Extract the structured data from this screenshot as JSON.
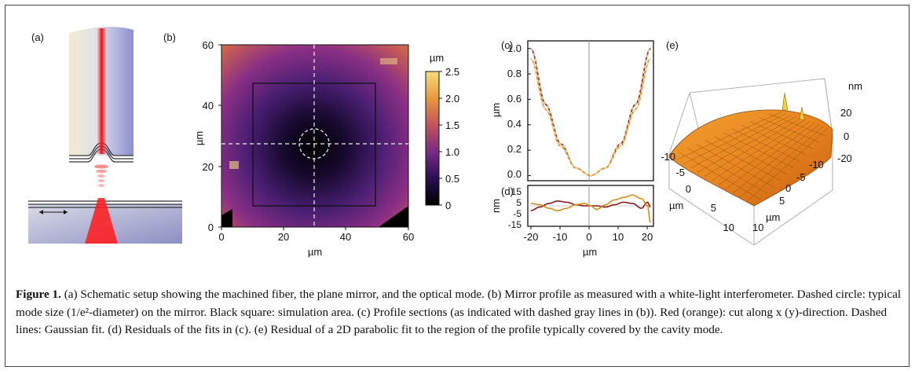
{
  "panels": {
    "a": {
      "label": "(a)"
    },
    "b": {
      "label": "(b)",
      "xlabel": "µm",
      "ylabel": "µm",
      "xticks": [
        "0",
        "20",
        "40",
        "60"
      ],
      "yticks": [
        "0",
        "20",
        "40",
        "60"
      ],
      "colorbar_unit": "µm",
      "colorbar_ticks": [
        "0",
        "0.5",
        "1.0",
        "1.5",
        "2.0",
        "2.5"
      ]
    },
    "c": {
      "label": "(c)",
      "ylabel": "µm",
      "yticks": [
        "0.0",
        "0.2",
        "0.4",
        "0.6",
        "0.8",
        "1.0"
      ]
    },
    "d": {
      "label": "(d)",
      "xlabel": "µm",
      "ylabel": "nm",
      "xticks": [
        "-20",
        "-10",
        "0",
        "10",
        "20"
      ],
      "yticks": [
        "15",
        "5",
        "-5",
        "-15"
      ]
    },
    "e": {
      "label": "(e)",
      "zunit": "nm",
      "zticks": [
        "20",
        "0",
        "-20"
      ],
      "left_axis_ticks": [
        "-10",
        "-5",
        "0",
        "5",
        "10"
      ],
      "left_axis_label": "µm",
      "right_axis_ticks": [
        "-10",
        "-5",
        "0",
        "5",
        "10"
      ],
      "right_axis_label": "µm"
    }
  },
  "colors": {
    "red_cut": "#8b1a1a",
    "orange_cut": "#d98c1a",
    "fit_dashed": "#f5e6b0"
  },
  "chart_data": [
    {
      "type": "heatmap",
      "panel": "b",
      "xlabel": "µm",
      "ylabel": "µm",
      "xlim": [
        0,
        60
      ],
      "ylim": [
        0,
        60
      ],
      "colorbar_label": "µm",
      "colorbar_range": [
        0,
        2.5
      ],
      "center": [
        30,
        27
      ]
    },
    {
      "type": "line",
      "panel": "c",
      "ylabel": "µm",
      "xlim": [
        -21,
        21
      ],
      "ylim": [
        -0.04,
        1.06
      ],
      "series": [
        {
          "x": [
            -20,
            -15,
            -10,
            -5,
            0,
            5,
            10,
            15,
            20
          ],
          "values": [
            1.0,
            0.56,
            0.25,
            0.06,
            0.0,
            0.06,
            0.25,
            0.56,
            1.0
          ]
        },
        {
          "x": [
            -20,
            -15,
            -10,
            -5,
            0,
            5,
            10,
            15,
            20
          ],
          "values": [
            0.92,
            0.52,
            0.23,
            0.06,
            0.0,
            0.06,
            0.23,
            0.52,
            0.92
          ]
        }
      ]
    },
    {
      "type": "line",
      "panel": "d",
      "xlabel": "µm",
      "ylabel": "nm",
      "xlim": [
        -21,
        21
      ],
      "ylim": [
        -17,
        17
      ],
      "series": [
        {
          "x": [
            -20,
            -17,
            -14,
            -11,
            -8,
            -5,
            -2,
            0,
            2,
            5,
            8,
            11,
            14,
            17,
            19,
            20
          ],
          "values": [
            -4,
            -1,
            2,
            4,
            3,
            1,
            0,
            0,
            0,
            -1,
            1,
            3,
            2,
            -2,
            3,
            -1
          ]
        },
        {
          "x": [
            -20,
            -17,
            -14,
            -11,
            -8,
            -5,
            -2,
            0,
            2,
            5,
            8,
            11,
            14,
            17,
            19,
            20
          ],
          "values": [
            2,
            1,
            -2,
            -4,
            -2,
            1,
            2,
            0,
            -3,
            1,
            5,
            7,
            9,
            6,
            0,
            -14
          ]
        }
      ]
    },
    {
      "type": "surface",
      "panel": "e",
      "zunit": "nm",
      "zlim": [
        -25,
        25
      ]
    }
  ],
  "caption": {
    "label": "Figure 1.",
    "text": " (a) Schematic setup showing the machined fiber, the plane mirror, and the optical mode. (b) Mirror profile as measured with a white-light interferometer. Dashed circle: typical mode size (1/e²-diameter) on the mirror. Black square: simulation area. (c) Profile sections (as indicated with dashed gray lines in (b)). Red (orange): cut along x (y)-direction. Dashed lines: Gaussian fit. (d) Residuals of the fits in (c). (e) Residual of a 2D parabolic fit to the region of the profile typically covered by the cavity mode."
  }
}
